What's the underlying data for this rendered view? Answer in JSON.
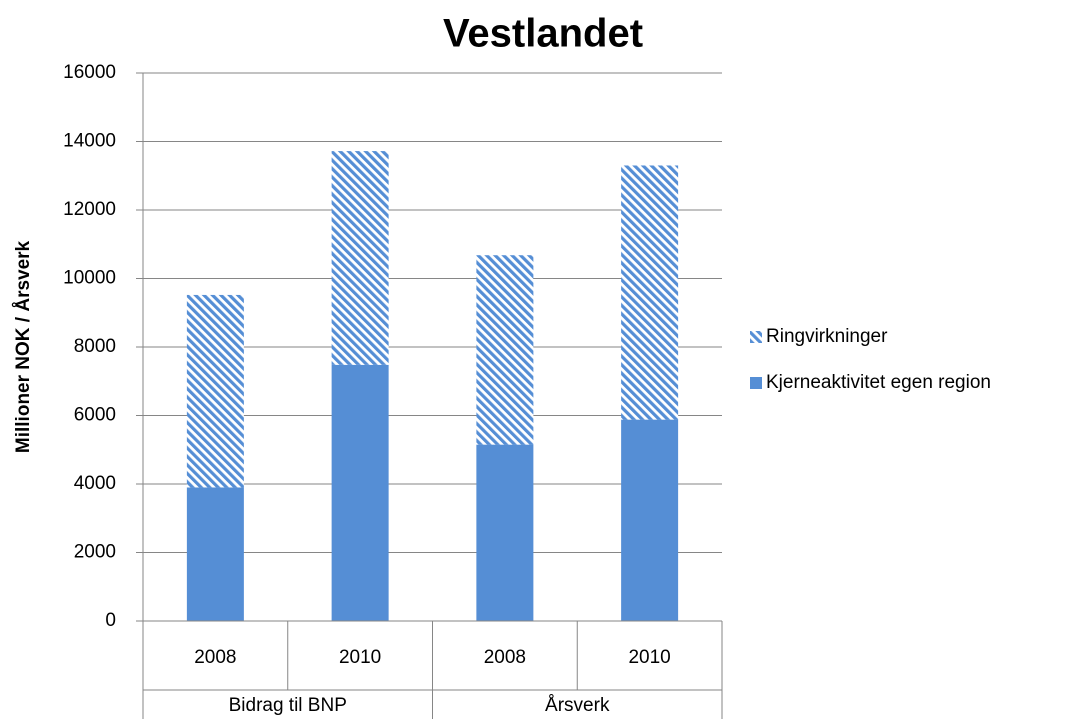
{
  "chart_data": {
    "type": "stacked_bar",
    "title": "Vestlandet",
    "y_label": "Millioner NOK / Årsverk",
    "groups": [
      {
        "name": "Bidrag til BNP",
        "categories": [
          "2008",
          "2010"
        ]
      },
      {
        "name": "Årsverk",
        "categories": [
          "2008",
          "2010"
        ]
      }
    ],
    "series": [
      {
        "name": "Kjerneaktivitet egen region",
        "color": "#558ed5",
        "pattern": "solid",
        "values": [
          3900,
          7480,
          5150,
          5880
        ]
      },
      {
        "name": "Ringvirkninger",
        "color": "#558ed5",
        "pattern": "hatched",
        "values": [
          5620,
          6240,
          5530,
          7420
        ]
      }
    ],
    "ylim": [
      0,
      16000
    ],
    "yticks": [
      0,
      2000,
      4000,
      6000,
      8000,
      10000,
      12000,
      14000,
      16000
    ],
    "grid": true,
    "legend": "right"
  }
}
